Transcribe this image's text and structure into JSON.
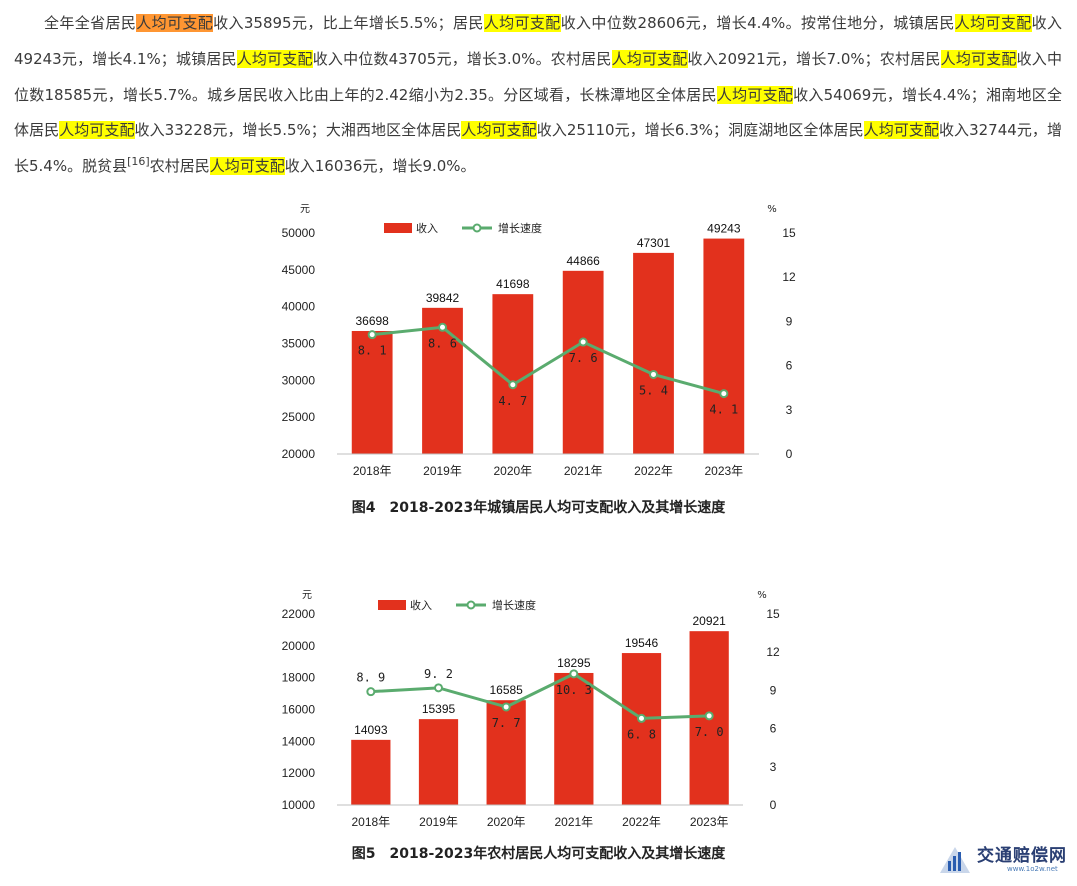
{
  "paragraph": [
    {
      "t": "全年全省居民"
    },
    {
      "t": "人均可支配",
      "h": "orange"
    },
    {
      "t": "收入35895元，比上年增长5.5%；居民"
    },
    {
      "t": "人均可支配",
      "h": "yellow"
    },
    {
      "t": "收入中位数28606元，增长4.4%。按常住地分，城镇居民"
    },
    {
      "t": "人均可支配",
      "h": "yellow"
    },
    {
      "t": "收入49243元，增长4.1%；城镇居民"
    },
    {
      "t": "人均可支配",
      "h": "yellow"
    },
    {
      "t": "收入中位数43705元，增长3.0%。农村居民"
    },
    {
      "t": "人均可支配",
      "h": "yellow"
    },
    {
      "t": "收入20921元，增长7.0%；农村居民"
    },
    {
      "t": "人均可支配",
      "h": "yellow"
    },
    {
      "t": "收入中位数18585元，增长5.7%。城乡居民收入比由上年的2.42缩小为2.35。分区域看，长株潭地区全体居民"
    },
    {
      "t": "人均可支配",
      "h": "yellow"
    },
    {
      "t": "收入54069元，增长4.4%；湘南地区全体居民"
    },
    {
      "t": "人均可支配",
      "h": "yellow"
    },
    {
      "t": "收入33228元，增长5.5%；大湘西地区全体居民"
    },
    {
      "t": "人均可支配",
      "h": "yellow"
    },
    {
      "t": "收入25110元，增长6.3%；洞庭湖地区全体居民"
    },
    {
      "t": "人均可支配",
      "h": "yellow"
    },
    {
      "t": "收入32744元，增长5.4%。脱贫县"
    },
    {
      "t": "[16]",
      "h": "sup"
    },
    {
      "t": "农村居民"
    },
    {
      "t": "人均可支配",
      "h": "yellow"
    },
    {
      "t": "收入16036元，增长9.0%。"
    }
  ],
  "chart_data": [
    {
      "type": "bar",
      "title": "图4　2018-2023年城镇居民人均可支配收入及其增长速度",
      "categories": [
        "2018年",
        "2019年",
        "2020年",
        "2021年",
        "2022年",
        "2023年"
      ],
      "series": [
        {
          "name": "收入",
          "type": "bar",
          "axis": "left",
          "color": "#e2311d",
          "values": [
            36698,
            39842,
            41698,
            44866,
            47301,
            49243
          ]
        },
        {
          "name": "增长速度",
          "type": "line",
          "axis": "right",
          "color": "#5aab6e",
          "values": [
            8.1,
            8.6,
            4.7,
            7.6,
            5.4,
            4.1
          ],
          "labels": [
            "8. 1",
            "8. 6",
            "4. 7",
            "7. 6",
            "5. 4",
            "4. 1"
          ]
        }
      ],
      "ylabel": "元",
      "y2label": "%",
      "ylim": [
        20000,
        50000
      ],
      "yticks": [
        20000,
        25000,
        30000,
        35000,
        40000,
        45000,
        50000
      ],
      "y2lim": [
        0,
        15
      ],
      "y2ticks": [
        0,
        3,
        6,
        9,
        12,
        15
      ],
      "legend": "top-center",
      "grid": false
    },
    {
      "type": "bar",
      "title": "图5　2018-2023年农村居民人均可支配收入及其增长速度",
      "categories": [
        "2018年",
        "2019年",
        "2020年",
        "2021年",
        "2022年",
        "2023年"
      ],
      "series": [
        {
          "name": "收入",
          "type": "bar",
          "axis": "left",
          "color": "#e2311d",
          "values": [
            14093,
            15395,
            16585,
            18295,
            19546,
            20921
          ]
        },
        {
          "name": "增长速度",
          "type": "line",
          "axis": "right",
          "color": "#5aab6e",
          "values": [
            8.9,
            9.2,
            7.7,
            10.3,
            6.8,
            7.0
          ],
          "labels": [
            "8. 9",
            "9. 2",
            "7. 7",
            "10. 3",
            "6. 8",
            "7. 0"
          ]
        }
      ],
      "ylabel": "元",
      "y2label": "%",
      "ylim": [
        10000,
        22000
      ],
      "yticks": [
        10000,
        12000,
        14000,
        16000,
        18000,
        20000,
        22000
      ],
      "y2lim": [
        0,
        15
      ],
      "y2ticks": [
        0,
        3,
        6,
        9,
        12,
        15
      ],
      "legend": "top-center",
      "grid": false
    }
  ],
  "watermark": {
    "name": "交通赔偿网",
    "url": "www.1o2w.net",
    "color": "#2a3f73"
  }
}
